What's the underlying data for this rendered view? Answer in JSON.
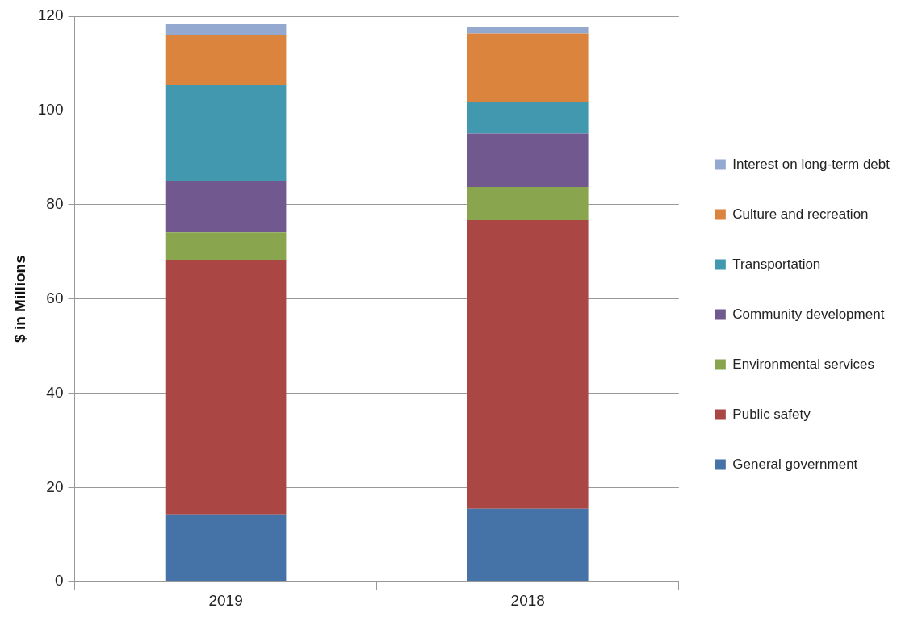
{
  "chart_data": {
    "type": "bar",
    "stacked": true,
    "ylabel": "$ in Millions",
    "categories": [
      "2019",
      "2018"
    ],
    "ylim": [
      0,
      120
    ],
    "yticks": [
      0,
      20,
      40,
      60,
      80,
      100,
      120
    ],
    "grid": "y",
    "legend": "right",
    "series": [
      {
        "name": "General government",
        "color": "#4572a7",
        "values": [
          14.3,
          15.5
        ]
      },
      {
        "name": "Public safety",
        "color": "#aa4643",
        "values": [
          53.9,
          61.2
        ]
      },
      {
        "name": "Environmental services",
        "color": "#89a54e",
        "values": [
          5.9,
          7.0
        ]
      },
      {
        "name": "Community development",
        "color": "#71588f",
        "values": [
          11.0,
          11.4
        ]
      },
      {
        "name": "Transportation",
        "color": "#4198af",
        "values": [
          20.3,
          6.6
        ]
      },
      {
        "name": "Culture and recreation",
        "color": "#db843d",
        "values": [
          10.6,
          14.6
        ]
      },
      {
        "name": "Interest on long-term debt",
        "color": "#93a9cf",
        "values": [
          2.3,
          1.4
        ]
      }
    ]
  }
}
